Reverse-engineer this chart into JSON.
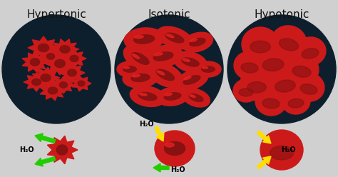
{
  "bg_color": "#d0d0d0",
  "title_color": "#111111",
  "titles": [
    "Hypertonic",
    "Isotonic",
    "Hypotonic"
  ],
  "circle_bg": "#0d1f2d",
  "cell_red": "#cc1a1a",
  "cell_dark": "#881111",
  "cell_bright": "#ee2222",
  "arrow_green": "#22cc00",
  "arrow_yellow": "#ffdd00",
  "h2o": "H₂O"
}
